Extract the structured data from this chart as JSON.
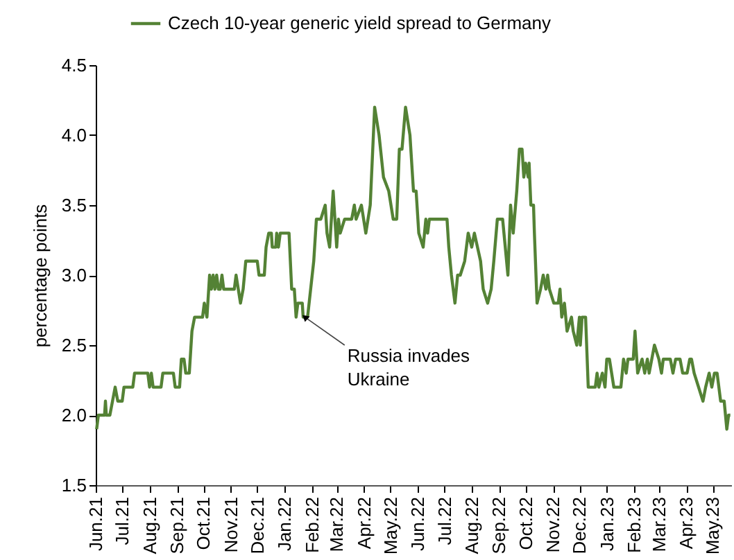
{
  "chart_data": {
    "type": "line",
    "ylabel": "percentage points",
    "legend": "top",
    "xlim": [
      "2021-06-01",
      "2023-05-22"
    ],
    "xticks": [
      {
        "value": "2021-06-01",
        "label": "Jun.21"
      },
      {
        "value": "2021-07-01",
        "label": "Jul.21"
      },
      {
        "value": "2021-08-01",
        "label": "Aug.21"
      },
      {
        "value": "2021-09-01",
        "label": "Sep.21"
      },
      {
        "value": "2021-10-01",
        "label": "Oct.21"
      },
      {
        "value": "2021-11-01",
        "label": "Nov.21"
      },
      {
        "value": "2021-12-01",
        "label": "Dec.21"
      },
      {
        "value": "2022-01-01",
        "label": "Jan.22"
      },
      {
        "value": "2022-02-01",
        "label": "Feb.22"
      },
      {
        "value": "2022-03-01",
        "label": "Mar.22"
      },
      {
        "value": "2022-04-01",
        "label": "Apr.22"
      },
      {
        "value": "2022-05-01",
        "label": "May.22"
      },
      {
        "value": "2022-06-01",
        "label": "Jun.22"
      },
      {
        "value": "2022-07-01",
        "label": "Jul.22"
      },
      {
        "value": "2022-08-01",
        "label": "Aug.22"
      },
      {
        "value": "2022-09-01",
        "label": "Sep.22"
      },
      {
        "value": "2022-10-01",
        "label": "Oct.22"
      },
      {
        "value": "2022-11-01",
        "label": "Nov.22"
      },
      {
        "value": "2022-12-01",
        "label": "Dec.22"
      },
      {
        "value": "2023-01-01",
        "label": "Jan.23"
      },
      {
        "value": "2023-02-01",
        "label": "Feb.23"
      },
      {
        "value": "2023-03-01",
        "label": "Mar.23"
      },
      {
        "value": "2023-04-01",
        "label": "Apr.23"
      },
      {
        "value": "2023-05-01",
        "label": "May.23"
      }
    ],
    "ylim": [
      1.5,
      4.5
    ],
    "yticks": [
      1.5,
      {
        "value": 2,
        "label": "2.0"
      },
      2.5,
      {
        "value": 3,
        "label": "3.0"
      },
      3.5,
      {
        "value": 4,
        "label": "4.0"
      },
      4.5
    ],
    "annotations": [
      {
        "text": "Russia invades Ukraine",
        "x": "2022-01-24",
        "y": 2.7
      }
    ],
    "series": [
      {
        "name": "Czech 10-year generic yield spread to Germany",
        "color": "#548235",
        "x": [
          "2021-06-02",
          "2021-06-04",
          "2021-06-11",
          "2021-06-12",
          "2021-06-13",
          "2021-06-17",
          "2021-06-20",
          "2021-06-23",
          "2021-06-26",
          "2021-07-01",
          "2021-07-03",
          "2021-07-13",
          "2021-07-15",
          "2021-07-30",
          "2021-08-01",
          "2021-08-03",
          "2021-08-05",
          "2021-08-14",
          "2021-08-16",
          "2021-08-28",
          "2021-08-30",
          "2021-09-04",
          "2021-09-06",
          "2021-09-09",
          "2021-09-11",
          "2021-09-15",
          "2021-09-18",
          "2021-09-21",
          "2021-09-30",
          "2021-10-02",
          "2021-10-05",
          "2021-10-08",
          "2021-10-10",
          "2021-10-12",
          "2021-10-14",
          "2021-10-16",
          "2021-10-18",
          "2021-10-20",
          "2021-10-22",
          "2021-10-24",
          "2021-11-05",
          "2021-11-07",
          "2021-11-12",
          "2021-11-15",
          "2021-11-18",
          "2021-12-01",
          "2021-12-03",
          "2021-12-09",
          "2021-12-11",
          "2021-12-14",
          "2021-12-17",
          "2021-12-18",
          "2021-12-22",
          "2021-12-23",
          "2021-12-25",
          "2021-12-27",
          "2022-01-06",
          "2022-01-09",
          "2022-01-12",
          "2022-01-14",
          "2022-01-16",
          "2022-01-21",
          "2022-01-22",
          "2022-01-27",
          "2022-02-03",
          "2022-02-06",
          "2022-02-11",
          "2022-02-16",
          "2022-02-18",
          "2022-02-21",
          "2022-02-25",
          "2022-02-27",
          "2022-03-01",
          "2022-03-03",
          "2022-03-05",
          "2022-03-10",
          "2022-03-18",
          "2022-03-21",
          "2022-03-23",
          "2022-03-29",
          "2022-04-03",
          "2022-04-08",
          "2022-04-13",
          "2022-04-18",
          "2022-04-23",
          "2022-04-29",
          "2022-05-04",
          "2022-05-08",
          "2022-05-11",
          "2022-05-14",
          "2022-05-18",
          "2022-05-23",
          "2022-05-27",
          "2022-05-30",
          "2022-06-02",
          "2022-06-07",
          "2022-06-10",
          "2022-06-12",
          "2022-06-14",
          "2022-06-23",
          "2022-07-04",
          "2022-07-06",
          "2022-07-09",
          "2022-07-13",
          "2022-07-16",
          "2022-07-19",
          "2022-07-24",
          "2022-07-28",
          "2022-08-01",
          "2022-08-04",
          "2022-08-11",
          "2022-08-14",
          "2022-08-19",
          "2022-08-23",
          "2022-08-26",
          "2022-08-30",
          "2022-09-05",
          "2022-09-11",
          "2022-09-14",
          "2022-09-17",
          "2022-09-21",
          "2022-09-24",
          "2022-09-27",
          "2022-09-29",
          "2022-10-01",
          "2022-10-04",
          "2022-10-05",
          "2022-10-07",
          "2022-10-10",
          "2022-10-11",
          "2022-10-14",
          "2022-10-18",
          "2022-10-21",
          "2022-10-24",
          "2022-10-26",
          "2022-10-28",
          "2022-11-02",
          "2022-11-07",
          "2022-11-09",
          "2022-11-11",
          "2022-11-14",
          "2022-11-17",
          "2022-11-22",
          "2022-11-24",
          "2022-11-28",
          "2022-12-01",
          "2022-12-02",
          "2022-12-04",
          "2022-12-08",
          "2022-12-11",
          "2022-12-19",
          "2022-12-21",
          "2022-12-23",
          "2022-12-27",
          "2022-12-30",
          "2023-01-01",
          "2023-01-04",
          "2023-01-09",
          "2023-01-17",
          "2023-01-20",
          "2023-01-23",
          "2023-01-25",
          "2023-01-31",
          "2023-02-02",
          "2023-02-05",
          "2023-02-10",
          "2023-02-13",
          "2023-02-16",
          "2023-02-18",
          "2023-02-21",
          "2023-02-24",
          "2023-03-01",
          "2023-03-04",
          "2023-03-06",
          "2023-03-14",
          "2023-03-17",
          "2023-03-20",
          "2023-03-25",
          "2023-03-28",
          "2023-04-02",
          "2023-04-05",
          "2023-04-07",
          "2023-04-10",
          "2023-04-15",
          "2023-04-20",
          "2023-04-23",
          "2023-04-27",
          "2023-04-30",
          "2023-05-03",
          "2023-05-06",
          "2023-05-10",
          "2023-05-14",
          "2023-05-17",
          "2023-05-19",
          "2023-05-21"
        ],
        "values": [
          1.9,
          2.0,
          2.0,
          2.1,
          2.0,
          2.0,
          2.1,
          2.2,
          2.1,
          2.1,
          2.2,
          2.2,
          2.3,
          2.3,
          2.2,
          2.3,
          2.2,
          2.2,
          2.3,
          2.3,
          2.2,
          2.2,
          2.4,
          2.4,
          2.3,
          2.3,
          2.6,
          2.7,
          2.7,
          2.8,
          2.7,
          3.0,
          2.9,
          3.0,
          2.9,
          3.0,
          2.9,
          2.9,
          3.0,
          2.9,
          2.9,
          3.0,
          2.8,
          2.9,
          3.1,
          3.1,
          3.0,
          3.0,
          3.2,
          3.3,
          3.3,
          3.2,
          3.2,
          3.3,
          3.2,
          3.3,
          3.3,
          2.9,
          2.9,
          2.7,
          2.8,
          2.8,
          2.7,
          2.7,
          3.1,
          3.4,
          3.4,
          3.5,
          3.3,
          3.2,
          3.6,
          3.4,
          3.2,
          3.4,
          3.3,
          3.4,
          3.4,
          3.5,
          3.4,
          3.5,
          3.3,
          3.5,
          4.2,
          4.0,
          3.7,
          3.6,
          3.4,
          3.4,
          3.9,
          3.9,
          4.2,
          4.0,
          3.6,
          3.6,
          3.3,
          3.2,
          3.4,
          3.3,
          3.4,
          3.4,
          3.4,
          3.2,
          3.0,
          2.8,
          3.0,
          3.0,
          3.1,
          3.3,
          3.2,
          3.3,
          3.1,
          2.9,
          2.8,
          2.9,
          3.1,
          3.4,
          3.4,
          3.0,
          3.5,
          3.3,
          3.6,
          3.9,
          3.9,
          3.7,
          3.8,
          3.7,
          3.8,
          3.5,
          3.5,
          3.3,
          2.8,
          2.9,
          3.0,
          2.9,
          3.0,
          2.9,
          2.8,
          2.8,
          2.9,
          2.7,
          2.8,
          2.6,
          2.7,
          2.6,
          2.5,
          2.7,
          2.5,
          2.7,
          2.7,
          2.2,
          2.2,
          2.3,
          2.2,
          2.3,
          2.2,
          2.4,
          2.4,
          2.2,
          2.2,
          2.4,
          2.3,
          2.4,
          2.4,
          2.6,
          2.3,
          2.4,
          2.3,
          2.4,
          2.3,
          2.4,
          2.5,
          2.4,
          2.3,
          2.4,
          2.4,
          2.3,
          2.4,
          2.4,
          2.3,
          2.3,
          2.4,
          2.4,
          2.3,
          2.2,
          2.1,
          2.2,
          2.3,
          2.2,
          2.3,
          2.3,
          2.1,
          2.1,
          1.9,
          2.0,
          2.0
        ]
      }
    ]
  }
}
